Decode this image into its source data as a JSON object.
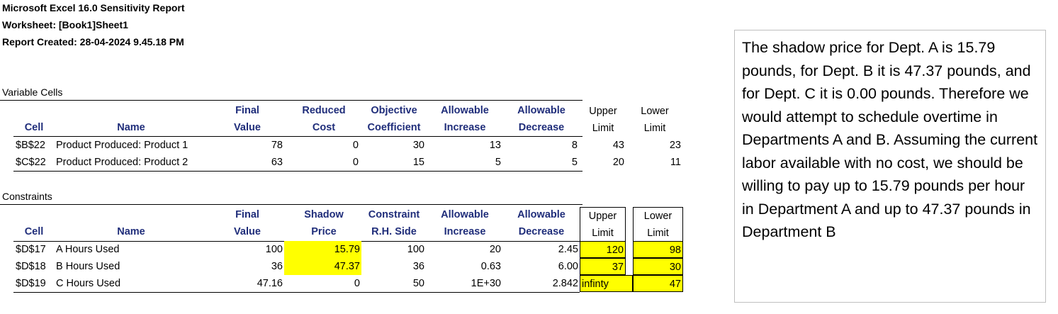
{
  "report": {
    "title": "Microsoft Excel 16.0 Sensitivity Report",
    "worksheet": "Worksheet: [Book1]Sheet1",
    "created": "Report Created: 28-04-2024 9.45.18 PM"
  },
  "variable_cells": {
    "section_label": "Variable Cells",
    "headers": {
      "cell": "Cell",
      "name": "Name",
      "final_1": "Final",
      "final_2": "Value",
      "reduced_1": "Reduced",
      "reduced_2": "Cost",
      "objective_1": "Objective",
      "objective_2": "Coefficient",
      "inc_1": "Allowable",
      "inc_2": "Increase",
      "dec_1": "Allowable",
      "dec_2": "Decrease",
      "upper_1": "Upper",
      "upper_2": "Limit",
      "lower_1": "Lower",
      "lower_2": "Limit"
    },
    "rows": [
      {
        "cell": "$B$22",
        "name": "Product Produced: Product 1",
        "final": "78",
        "reduced": "0",
        "objective": "30",
        "inc": "13",
        "dec": "8",
        "upper": "43",
        "lower": "23"
      },
      {
        "cell": "$C$22",
        "name": "Product Produced: Product 2",
        "final": "63",
        "reduced": "0",
        "objective": "15",
        "inc": "5",
        "dec": "5",
        "upper": "20",
        "lower": "11"
      }
    ]
  },
  "constraints": {
    "section_label": "Constraints",
    "headers": {
      "cell": "Cell",
      "name": "Name",
      "final_1": "Final",
      "final_2": "Value",
      "shadow_1": "Shadow",
      "shadow_2": "Price",
      "rhs_1": "Constraint",
      "rhs_2": "R.H. Side",
      "inc_1": "Allowable",
      "inc_2": "Increase",
      "dec_1": "Allowable",
      "dec_2": "Decrease",
      "upper_1": "Upper",
      "upper_2": "Limit",
      "lower_1": "Lower",
      "lower_2": "Limit"
    },
    "rows": [
      {
        "cell": "$D$17",
        "name": "A Hours Used",
        "final": "100",
        "shadow": "15.79",
        "rhs": "100",
        "inc": "20",
        "dec": "2.45",
        "upper": "120",
        "lower": "98"
      },
      {
        "cell": "$D$18",
        "name": "B Hours Used",
        "final": "36",
        "shadow": "47.37",
        "rhs": "36",
        "inc": "0.63",
        "dec": "6.00",
        "upper": "37",
        "lower": "30"
      },
      {
        "cell": "$D$19",
        "name": "C Hours Used",
        "final": "47.16",
        "shadow": "0",
        "rhs": "50",
        "inc": "1E+30",
        "dec": "2.842",
        "upper": "infinty",
        "lower": "47"
      }
    ]
  },
  "note": {
    "text": "The shadow price for Dept. A is 15.79 pounds, for Dept. B it is 47.37 pounds, and for Dept. C it is 0.00 pounds. Therefore we would attempt to schedule overtime in Departments A and B. Assuming the current labor available with no cost, we should be willing to pay up to 15.79  pounds per hour in Department A and up to  47.37 pounds in Department B"
  },
  "colors": {
    "header_blue": "#1f2d7a",
    "highlight": "#ffff00"
  }
}
